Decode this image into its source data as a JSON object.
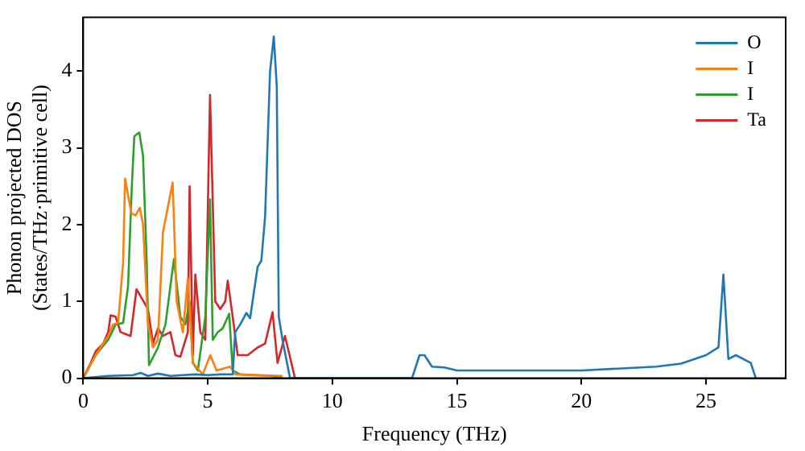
{
  "chart_data": {
    "type": "line",
    "xlabel": "Frequency (THz)",
    "ylabel": "Phonon projected DOS\n(States/THz·primitive cell)",
    "xlim": [
      0,
      28.2
    ],
    "ylim": [
      0,
      4.7
    ],
    "xticks": [
      0,
      5,
      10,
      15,
      20,
      25
    ],
    "yticks": [
      0,
      1,
      2,
      3,
      4
    ],
    "grid": false,
    "legend": "top right",
    "marker": "none",
    "line_style": "solid",
    "series": [
      {
        "name": "O",
        "color": "#1f77b4",
        "x": [
          0,
          1,
          2,
          2.3,
          2.6,
          3,
          3.5,
          4,
          4.5,
          5,
          5.5,
          5.8,
          6.0,
          6.1,
          6.3,
          6.55,
          6.7,
          7.0,
          7.15,
          7.3,
          7.5,
          7.65,
          7.77,
          7.85,
          8.0,
          8.3,
          13.2,
          13.5,
          13.7,
          14.0,
          14.5,
          15,
          17,
          20,
          23,
          24,
          25,
          25.5,
          25.7,
          25.9,
          26.2,
          26.8,
          27
        ],
        "values": [
          0,
          0.03,
          0.04,
          0.07,
          0.03,
          0.06,
          0.03,
          0.04,
          0.05,
          0.04,
          0.05,
          0.05,
          0.05,
          0.6,
          0.7,
          0.85,
          0.78,
          1.45,
          1.53,
          2.1,
          4.0,
          4.45,
          3.8,
          0.8,
          0.5,
          0,
          0,
          0.3,
          0.3,
          0.15,
          0.14,
          0.1,
          0.1,
          0.1,
          0.15,
          0.19,
          0.3,
          0.4,
          1.35,
          0.25,
          0.3,
          0.2,
          0
        ]
      },
      {
        "name": "I",
        "color": "#ff7f0e",
        "x": [
          0,
          0.5,
          1.0,
          1.2,
          1.4,
          1.6,
          1.68,
          1.93,
          2.1,
          2.27,
          2.4,
          2.6,
          2.8,
          3.0,
          3.2,
          3.59,
          3.75,
          4.0,
          4.2,
          4.4,
          4.8,
          5.1,
          5.35,
          5.9,
          6.1,
          8
        ],
        "values": [
          0,
          0.3,
          0.55,
          0.7,
          0.72,
          1.5,
          2.6,
          2.15,
          2.12,
          2.22,
          2.0,
          0.7,
          0.4,
          0.5,
          1.9,
          2.55,
          1.0,
          0.6,
          1.3,
          0.2,
          0.05,
          0.3,
          0.1,
          0.15,
          0.05,
          0.03
        ]
      },
      {
        "name": "I",
        "color": "#2ca02c",
        "x": [
          0,
          0.5,
          1.0,
          1.3,
          1.6,
          1.8,
          1.95,
          2.05,
          2.25,
          2.4,
          2.55,
          2.64,
          3.0,
          3.3,
          3.5,
          3.64,
          3.9,
          4.1,
          4.27,
          4.4,
          4.6,
          4.9,
          5.09,
          5.2,
          5.4,
          5.6,
          5.86,
          6.0,
          6.3,
          7.5,
          8
        ],
        "values": [
          0,
          0.3,
          0.5,
          0.7,
          0.72,
          1.2,
          2.5,
          3.15,
          3.2,
          2.9,
          1.5,
          0.17,
          0.4,
          0.7,
          1.2,
          1.55,
          0.8,
          0.7,
          1.0,
          0.2,
          0.1,
          0.8,
          2.33,
          0.5,
          0.6,
          0.65,
          0.84,
          0.1,
          0.05,
          0.03,
          0
        ]
      },
      {
        "name": "Ta",
        "color": "#d62728",
        "x": [
          0,
          0.3,
          0.5,
          0.8,
          1.0,
          1.1,
          1.3,
          1.5,
          1.9,
          2.14,
          2.6,
          2.8,
          3.0,
          3.2,
          3.5,
          3.7,
          3.9,
          4.2,
          4.27,
          4.4,
          4.5,
          4.7,
          4.9,
          5.09,
          5.3,
          5.5,
          5.7,
          5.8,
          6.0,
          6.2,
          6.6,
          7.0,
          7.3,
          7.6,
          7.8,
          8.1,
          8.5
        ],
        "values": [
          0,
          0.2,
          0.35,
          0.45,
          0.6,
          0.82,
          0.8,
          0.6,
          0.55,
          1.16,
          0.9,
          0.45,
          0.65,
          0.55,
          0.6,
          0.3,
          0.28,
          0.6,
          2.5,
          0.3,
          1.35,
          0.6,
          0.5,
          3.69,
          1.0,
          0.9,
          1.0,
          1.27,
          0.8,
          0.3,
          0.3,
          0.4,
          0.45,
          0.86,
          0.2,
          0.55,
          0
        ]
      }
    ]
  }
}
